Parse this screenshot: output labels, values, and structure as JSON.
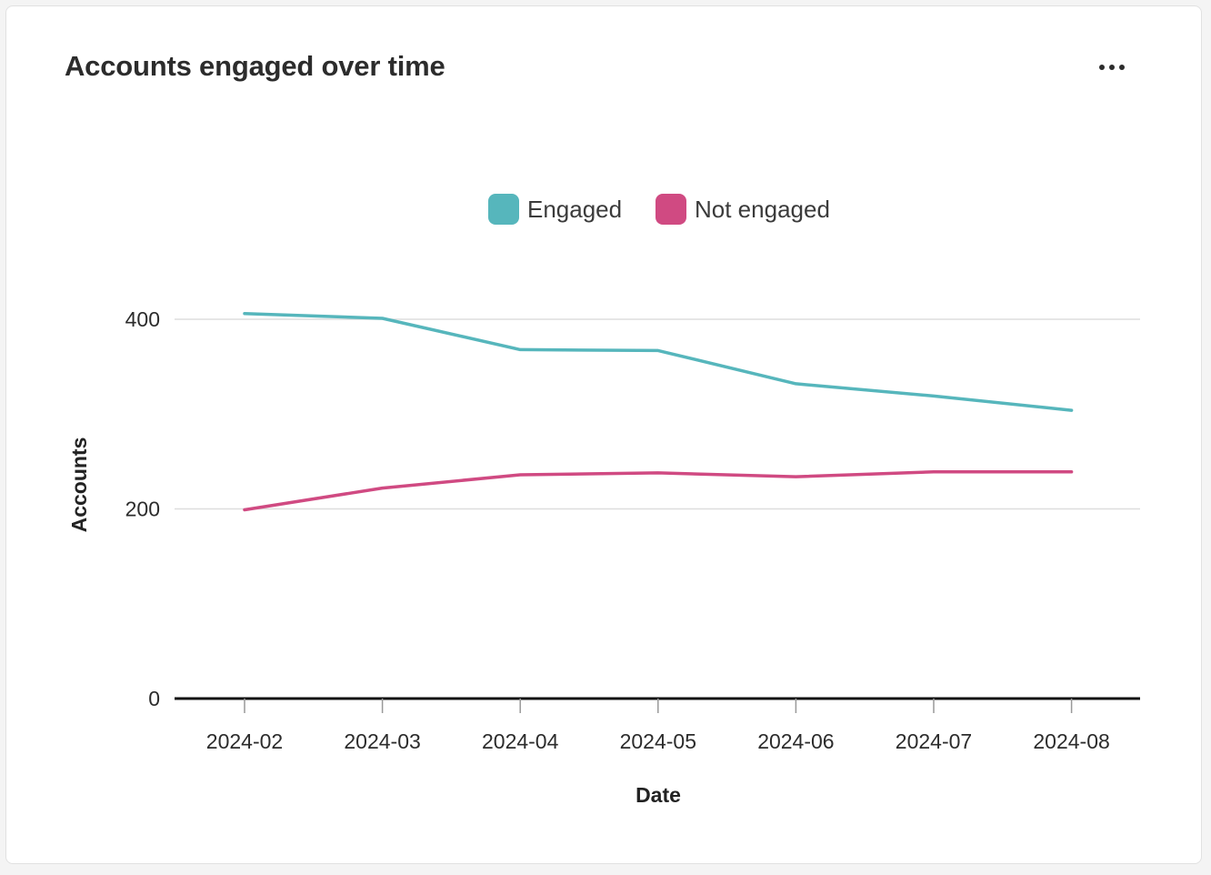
{
  "card": {
    "title": "Accounts engaged over time",
    "more_icon": "more-horizontal-icon"
  },
  "colors": {
    "engaged": "#56b6bc",
    "not_engaged": "#d04a82",
    "grid": "#dddddd",
    "axis": "#111111"
  },
  "chart_data": {
    "type": "line",
    "x": [
      "2024-02",
      "2024-03",
      "2024-04",
      "2024-05",
      "2024-06",
      "2024-07",
      "2024-08"
    ],
    "series": [
      {
        "name": "Engaged",
        "values": [
          406,
          401,
          368,
          367,
          332,
          319,
          304
        ]
      },
      {
        "name": "Not engaged",
        "values": [
          199,
          222,
          236,
          238,
          234,
          239,
          239
        ]
      }
    ],
    "xlabel": "Date",
    "ylabel": "Accounts",
    "ylim": [
      0,
      400
    ],
    "yticks": [
      "0",
      "200",
      "400"
    ],
    "grid": true,
    "legend_position": "top-center"
  }
}
